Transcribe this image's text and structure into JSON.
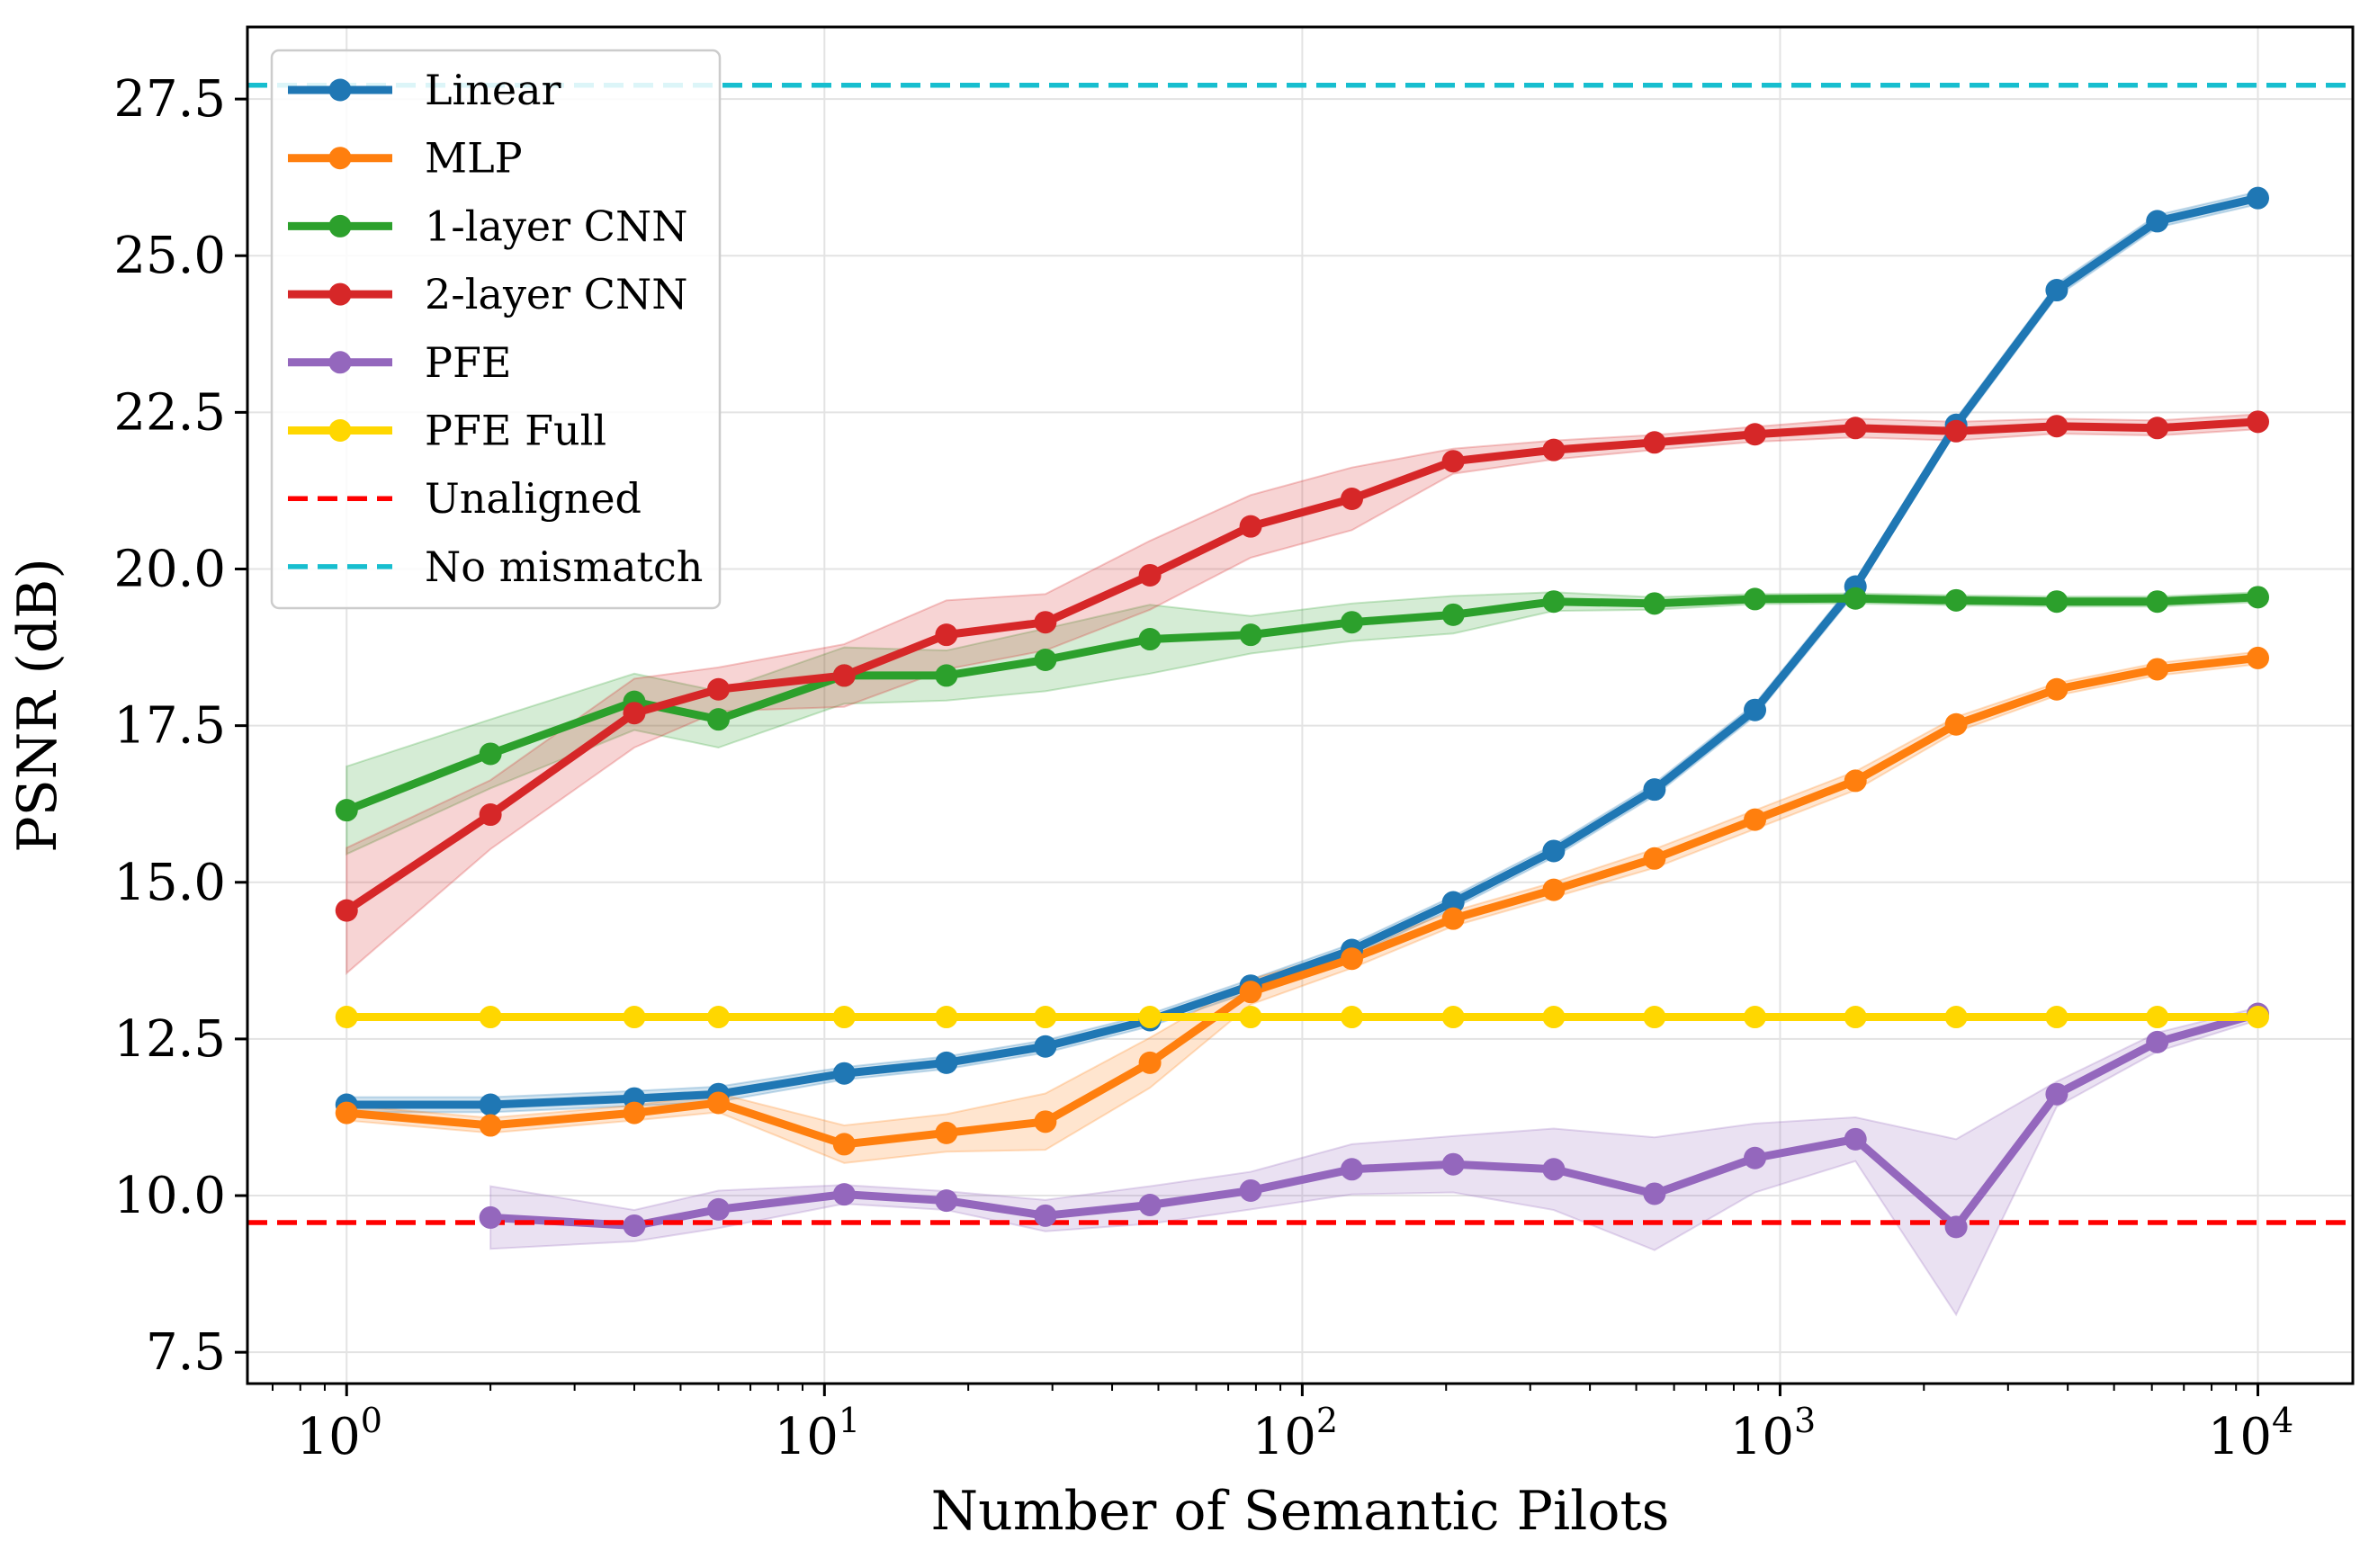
{
  "chart_data": {
    "type": "line",
    "xlabel": "Number of Semantic Pilots",
    "ylabel": "PSNR (dB)",
    "xscale": "log",
    "xlim": [
      0.62,
      15800
    ],
    "ylim": [
      7.0,
      28.65
    ],
    "x_ticks": [
      {
        "value": 1,
        "base": "10",
        "exp": "0"
      },
      {
        "value": 10,
        "base": "10",
        "exp": "1"
      },
      {
        "value": 100,
        "base": "10",
        "exp": "2"
      },
      {
        "value": 1000,
        "base": "10",
        "exp": "3"
      },
      {
        "value": 10000,
        "base": "10",
        "exp": "4"
      }
    ],
    "y_ticks": [
      {
        "value": 7.5,
        "label": "7.5"
      },
      {
        "value": 10.0,
        "label": "10.0"
      },
      {
        "value": 12.5,
        "label": "12.5"
      },
      {
        "value": 15.0,
        "label": "15.0"
      },
      {
        "value": 17.5,
        "label": "17.5"
      },
      {
        "value": 20.0,
        "label": "20.0"
      },
      {
        "value": 22.5,
        "label": "22.5"
      },
      {
        "value": 25.0,
        "label": "25.0"
      },
      {
        "value": 27.5,
        "label": "27.5"
      }
    ],
    "grid": true,
    "legend_position": "top-left",
    "series": [
      {
        "name": "Linear",
        "color": "#1f77b4",
        "style": "line-marker",
        "x": [
          1,
          2,
          4,
          6,
          11,
          18,
          29,
          48,
          78,
          127,
          207,
          336,
          546,
          886,
          1438,
          2336,
          3793,
          6158,
          10000
        ],
        "y": [
          11.45,
          11.45,
          11.55,
          11.62,
          11.95,
          12.12,
          12.38,
          12.8,
          13.35,
          13.92,
          14.68,
          15.5,
          16.48,
          17.75,
          19.72,
          22.3,
          24.45,
          25.55,
          25.92
        ],
        "band": [
          0.12,
          0.12,
          0.12,
          0.12,
          0.1,
          0.1,
          0.1,
          0.1,
          0.1,
          0.1,
          0.1,
          0.1,
          0.1,
          0.1,
          0.1,
          0.1,
          0.1,
          0.1,
          0.1
        ]
      },
      {
        "name": "MLP",
        "color": "#ff7f0e",
        "style": "line-marker",
        "x": [
          1,
          2,
          4,
          6,
          11,
          18,
          29,
          48,
          78,
          127,
          207,
          336,
          546,
          886,
          1438,
          2336,
          3793,
          6158,
          10000
        ],
        "y": [
          11.32,
          11.12,
          11.32,
          11.48,
          10.82,
          11.0,
          11.18,
          12.12,
          13.25,
          13.78,
          14.42,
          14.88,
          15.38,
          16.0,
          16.62,
          17.52,
          18.08,
          18.4,
          18.58
        ],
        "band": [
          0.12,
          0.12,
          0.12,
          0.15,
          0.3,
          0.3,
          0.45,
          0.4,
          0.2,
          0.15,
          0.12,
          0.12,
          0.15,
          0.15,
          0.15,
          0.12,
          0.1,
          0.1,
          0.1
        ]
      },
      {
        "name": "1-layer CNN",
        "color": "#2ca02c",
        "style": "line-marker",
        "x": [
          1,
          2,
          4,
          6,
          11,
          18,
          29,
          48,
          78,
          127,
          207,
          336,
          546,
          886,
          1438,
          2336,
          3793,
          6158,
          10000
        ],
        "y": [
          16.15,
          17.05,
          17.88,
          17.6,
          18.3,
          18.3,
          18.55,
          18.88,
          18.95,
          19.15,
          19.27,
          19.48,
          19.45,
          19.52,
          19.53,
          19.5,
          19.48,
          19.48,
          19.55
        ],
        "band": [
          0.7,
          0.55,
          0.45,
          0.45,
          0.45,
          0.4,
          0.5,
          0.55,
          0.3,
          0.3,
          0.3,
          0.15,
          0.1,
          0.08,
          0.08,
          0.08,
          0.08,
          0.08,
          0.08
        ]
      },
      {
        "name": "2-layer CNN",
        "color": "#d62728",
        "style": "line-marker",
        "x": [
          1,
          2,
          4,
          6,
          11,
          18,
          29,
          48,
          78,
          127,
          207,
          336,
          546,
          886,
          1438,
          2336,
          3793,
          6158,
          10000
        ],
        "y": [
          14.55,
          16.08,
          17.7,
          18.08,
          18.3,
          18.95,
          19.15,
          19.9,
          20.68,
          21.12,
          21.72,
          21.9,
          22.02,
          22.15,
          22.25,
          22.2,
          22.28,
          22.25,
          22.35
        ],
        "band": [
          1.0,
          0.55,
          0.55,
          0.35,
          0.5,
          0.55,
          0.45,
          0.55,
          0.5,
          0.5,
          0.2,
          0.15,
          0.12,
          0.12,
          0.15,
          0.15,
          0.12,
          0.12,
          0.12
        ]
      },
      {
        "name": "PFE",
        "color": "#9467bd",
        "style": "line-marker",
        "x": [
          2,
          4,
          6,
          11,
          18,
          29,
          48,
          78,
          127,
          207,
          336,
          546,
          886,
          1438,
          2336,
          3793,
          6158,
          10000
        ],
        "y": [
          9.65,
          9.52,
          9.78,
          10.02,
          9.92,
          9.68,
          9.85,
          10.08,
          10.42,
          10.5,
          10.42,
          10.03,
          10.6,
          10.9,
          9.5,
          11.62,
          12.45,
          12.9
        ],
        "band": [
          0.5,
          0.25,
          0.3,
          0.15,
          0.15,
          0.25,
          0.3,
          0.3,
          0.4,
          0.45,
          0.65,
          0.9,
          0.55,
          0.35,
          1.4,
          0.2,
          0.15,
          0.1
        ]
      },
      {
        "name": "PFE Full",
        "color": "#ffd700",
        "style": "line-marker",
        "x": [
          1,
          2,
          4,
          6,
          11,
          18,
          29,
          48,
          78,
          127,
          207,
          336,
          546,
          886,
          1438,
          2336,
          3793,
          6158,
          10000
        ],
        "y": [
          12.85,
          12.85,
          12.85,
          12.85,
          12.85,
          12.85,
          12.85,
          12.85,
          12.85,
          12.85,
          12.85,
          12.85,
          12.85,
          12.85,
          12.85,
          12.85,
          12.85,
          12.85,
          12.85
        ]
      },
      {
        "name": "Unaligned",
        "color": "#ff0000",
        "style": "hline-dashed",
        "y_value": 9.57
      },
      {
        "name": "No mismatch",
        "color": "#17becf",
        "style": "hline-dashed",
        "y_value": 27.72
      }
    ]
  }
}
